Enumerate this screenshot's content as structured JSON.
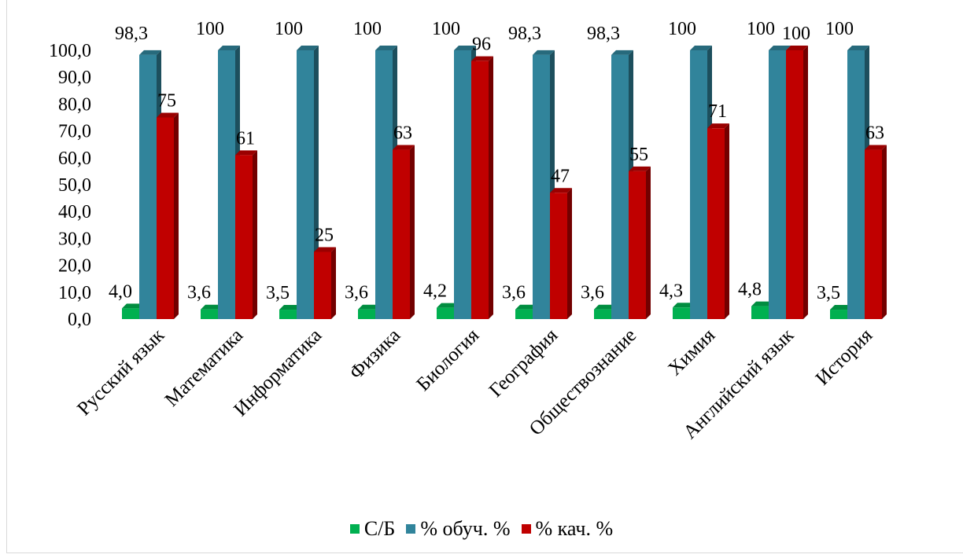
{
  "chart_data": {
    "type": "bar",
    "categories": [
      "Русский язык",
      "Математика",
      "Информатика",
      "Физика",
      "Биология",
      "География",
      "Обществознание",
      "Химия",
      "Английский язык",
      "История"
    ],
    "series": [
      {
        "name": "С/Б",
        "color": "#00b050",
        "values": [
          4.0,
          3.6,
          3.5,
          3.6,
          4.2,
          3.6,
          3.6,
          4.3,
          4.8,
          3.5
        ],
        "labels": [
          "4,0",
          "3,6",
          "3,5",
          "3,6",
          "4,2",
          "3,6",
          "3,6",
          "4,3",
          "4,8",
          "3,5"
        ]
      },
      {
        "name": "% обуч. %",
        "color": "#31849b",
        "values": [
          98.3,
          100,
          100,
          100,
          100,
          98.3,
          98.3,
          100,
          100,
          100
        ],
        "labels": [
          "98,3",
          "100",
          "100",
          "100",
          "100",
          "98,3",
          "98,3",
          "100",
          "100",
          "100"
        ]
      },
      {
        "name": "% кач. %",
        "color": "#c00000",
        "values": [
          75,
          61,
          25,
          63,
          96,
          47,
          55,
          71,
          100,
          63
        ],
        "labels": [
          "75",
          "61",
          "25",
          "63",
          "96",
          "47",
          "55",
          "71",
          "100",
          "63"
        ]
      }
    ],
    "y_ticks": [
      "0,0",
      "10,0",
      "20,0",
      "30,0",
      "40,0",
      "50,0",
      "60,0",
      "70,0",
      "80,0",
      "90,0",
      "100,0"
    ],
    "ylim": [
      0,
      100
    ],
    "grid": false,
    "legend_position": "bottom"
  }
}
